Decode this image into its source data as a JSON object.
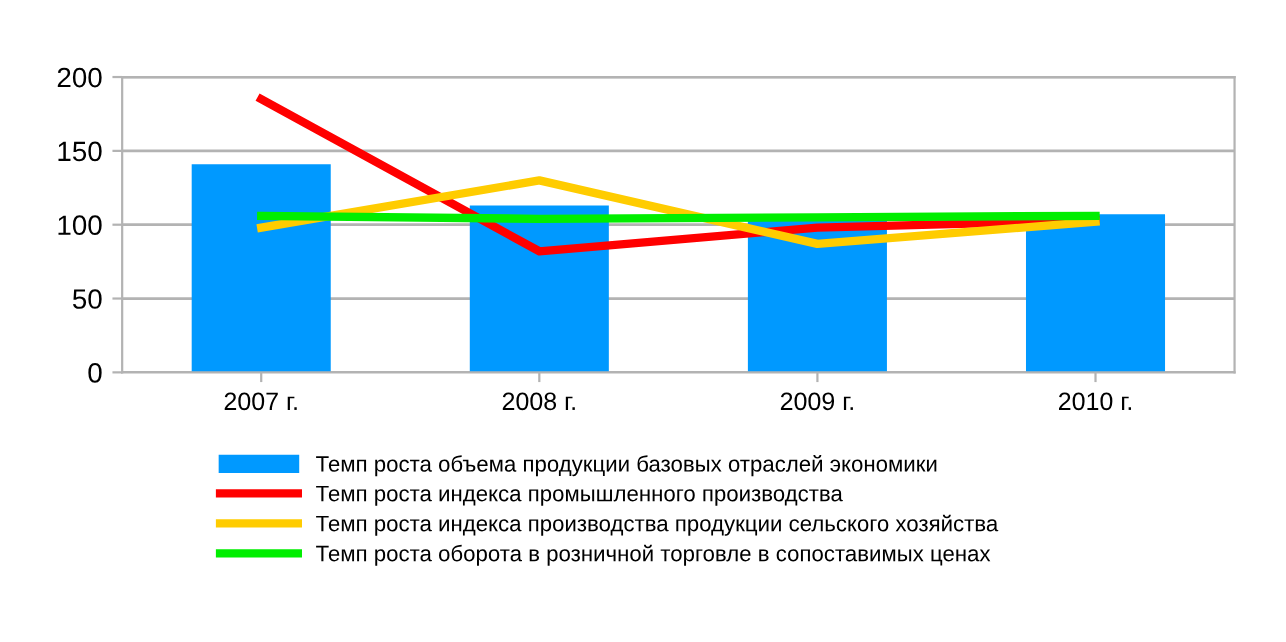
{
  "chart_data": {
    "type": "bar",
    "categories": [
      "2007 г.",
      "2008 г.",
      "2009 г.",
      "2010 г."
    ],
    "series": [
      {
        "name": "Темп роста объема продукции базовых отраслей экономики",
        "color": "#0099ff",
        "values": [
          141,
          113,
          106,
          107
        ]
      },
      {
        "name": "Темп роста индекса промышленного производства",
        "type": "line",
        "color": "#ff0000",
        "values": [
          185,
          82,
          98,
          103
        ]
      },
      {
        "name": "Темп роста индекса производства продукции сельского хозяйства",
        "type": "line",
        "color": "#ffcc00",
        "values": [
          98,
          130,
          87,
          102
        ]
      },
      {
        "name": "Темп роста оборота в розничной торговле в сопоставимых ценах",
        "type": "line",
        "color": "#00ee00",
        "values": [
          106,
          104,
          105,
          106
        ]
      }
    ],
    "ylim": [
      0,
      200
    ],
    "yticks": [
      0,
      50,
      100,
      150,
      200
    ],
    "grid": "y",
    "legend": "bottom",
    "marker": "none",
    "line_style": "solid"
  }
}
